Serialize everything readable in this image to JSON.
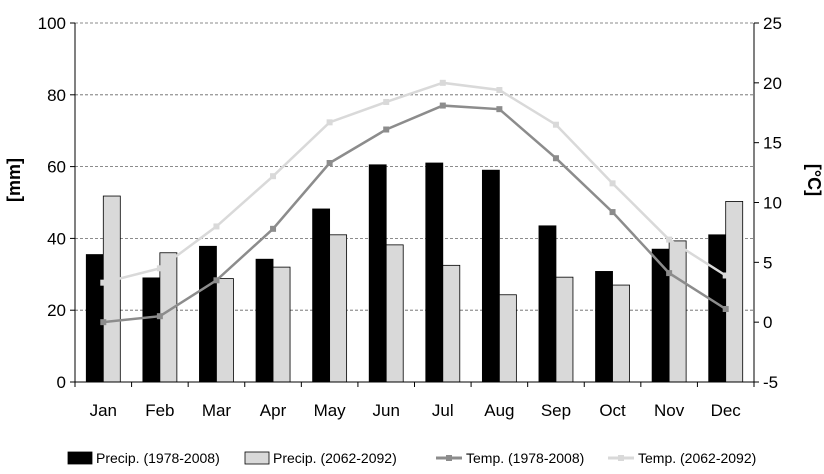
{
  "chart_data": {
    "type": "bar",
    "categories": [
      "Jan",
      "Feb",
      "Mar",
      "Apr",
      "May",
      "Jun",
      "Jul",
      "Aug",
      "Sep",
      "Oct",
      "Nov",
      "Dec"
    ],
    "ylabel": "[mm]",
    "y2label": "[°C]",
    "ylim": [
      0,
      100
    ],
    "y2lim": [
      -5,
      25
    ],
    "yticks": [
      "0",
      "20",
      "40",
      "60",
      "80",
      "100"
    ],
    "y2ticks": [
      "-5",
      "0",
      "5",
      "10",
      "15",
      "20",
      "25"
    ],
    "grid": "horizontal dashed",
    "legend_position": "bottom",
    "series": [
      {
        "name": "Precip. (1978-2008)",
        "kind": "bar",
        "axis": "left",
        "color": "#000000",
        "values": [
          35.5,
          29,
          37.8,
          34.2,
          48.2,
          60.5,
          61,
          59,
          43.5,
          30.8,
          37,
          41
        ]
      },
      {
        "name": "Precip. (2062-2092)",
        "kind": "bar",
        "axis": "left",
        "color": "#d9d9d9",
        "values": [
          51.8,
          36,
          28.8,
          32,
          41,
          38.2,
          32.5,
          24.3,
          29.2,
          27,
          39.3,
          50.3
        ]
      },
      {
        "name": "Temp. (1978-2008)",
        "kind": "line",
        "axis": "right",
        "color": "#8c8c8c",
        "values": [
          0.0,
          0.5,
          3.5,
          7.8,
          13.3,
          16.1,
          18.1,
          17.8,
          13.7,
          9.2,
          4.1,
          1.1
        ]
      },
      {
        "name": "Temp. (2062-2092)",
        "kind": "line",
        "axis": "right",
        "color": "#d9d9d9",
        "values": [
          3.3,
          4.5,
          8.0,
          12.2,
          16.7,
          18.4,
          20.0,
          19.4,
          16.5,
          11.6,
          6.9,
          3.9
        ]
      }
    ]
  }
}
